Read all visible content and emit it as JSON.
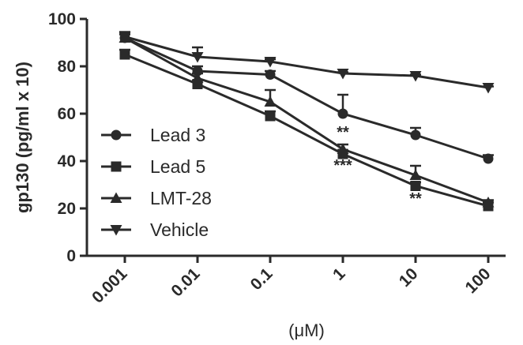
{
  "chart_data": {
    "type": "line",
    "xlabel": "(μM)",
    "ylabel": "gp130 (pg/ml x 10)",
    "ylim": [
      0,
      100
    ],
    "yticks": [
      "0",
      "20",
      "40",
      "60",
      "80",
      "100"
    ],
    "categories": [
      "0.001",
      "0.01",
      "0.1",
      "1",
      "10",
      "100"
    ],
    "legend_position": "left-middle",
    "colors": {
      "ink": "#2a2a2a"
    },
    "series": [
      {
        "name": "Lead 3",
        "marker": "circle",
        "values": [
          92,
          78,
          76.5,
          60,
          51,
          41
        ],
        "error": [
          1.5,
          2,
          1.5,
          8,
          3,
          1.5
        ]
      },
      {
        "name": "Lead 5",
        "marker": "square",
        "values": [
          85,
          72.5,
          59,
          43,
          29.5,
          21
        ],
        "error": [
          2,
          1.5,
          2,
          1.5,
          1.5,
          1.5
        ]
      },
      {
        "name": "LMT-28",
        "marker": "triangle-up",
        "values": [
          92,
          75,
          65,
          45,
          34,
          22.5
        ],
        "error": [
          1.5,
          2,
          5,
          2,
          4,
          1
        ]
      },
      {
        "name": "Vehicle",
        "marker": "triangle-down",
        "values": [
          92.5,
          84,
          82,
          77,
          76,
          71
        ],
        "error": [
          2,
          4,
          1,
          0.5,
          0.5,
          0.5
        ]
      }
    ],
    "annotations": [
      {
        "text": "**",
        "category": "1",
        "y": 50
      },
      {
        "text": "***",
        "category": "1",
        "y": 36
      },
      {
        "text": "**",
        "category": "10",
        "y": 22
      }
    ]
  }
}
